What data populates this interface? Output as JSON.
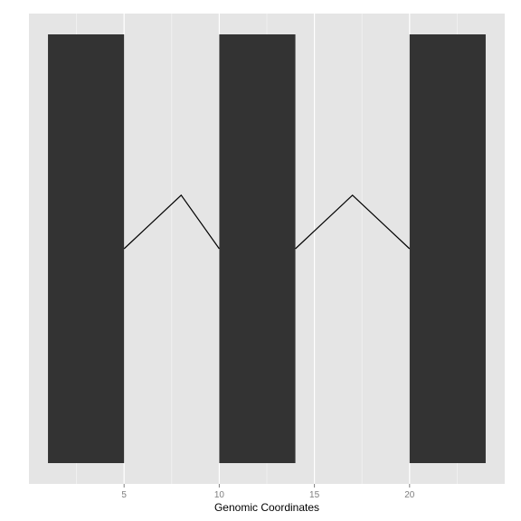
{
  "chart_data": {
    "type": "bar",
    "title": "",
    "xlabel": "Genomic Coordinates",
    "ylabel": "",
    "xlim": [
      0,
      25
    ],
    "ylim": [
      0,
      1
    ],
    "grid": true,
    "legend": "none",
    "x_ticks": [
      5,
      10,
      15,
      20
    ],
    "x_minor_ticks": [
      2.5,
      7.5,
      12.5,
      17.5,
      22.5
    ],
    "exons": [
      {
        "start": 1,
        "end": 5
      },
      {
        "start": 10,
        "end": 14
      },
      {
        "start": 20,
        "end": 24
      }
    ],
    "intron_lines": [
      {
        "x": [
          5,
          8,
          10
        ],
        "y": [
          0.5,
          0.625,
          0.5
        ]
      },
      {
        "x": [
          14,
          17,
          20
        ],
        "y": [
          0.5,
          0.625,
          0.5
        ]
      }
    ],
    "colors": {
      "panel_background": "#e5e5e5",
      "grid_major": "#ffffff",
      "grid_minor": "#f2f2f2",
      "exon_fill": "#333333",
      "intron_line": "#000000"
    }
  }
}
